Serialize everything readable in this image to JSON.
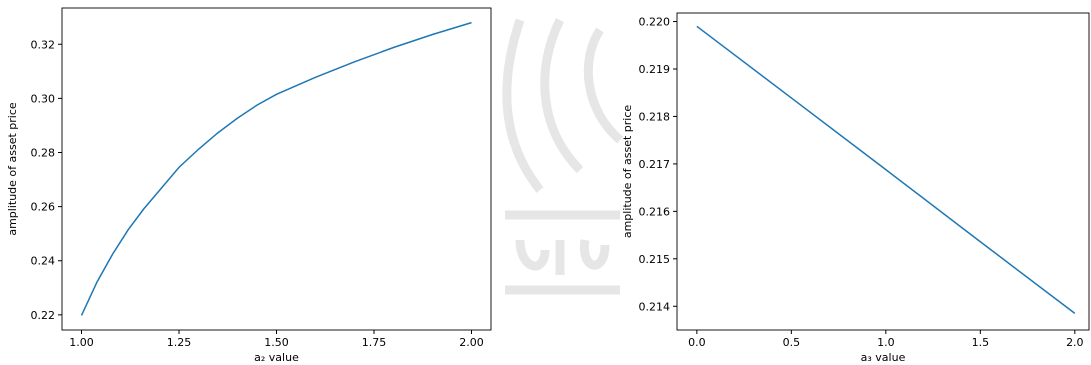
{
  "chart_data": [
    {
      "type": "line",
      "xlabel": "a₂ value",
      "ylabel": "amplitude of asset price",
      "x": [
        1.0,
        1.04,
        1.08,
        1.12,
        1.16,
        1.2,
        1.25,
        1.3,
        1.35,
        1.4,
        1.45,
        1.5,
        1.6,
        1.7,
        1.8,
        1.9,
        2.0
      ],
      "series": [
        {
          "color": "#1f77b4",
          "values": [
            0.2198,
            0.2322,
            0.2425,
            0.2515,
            0.2592,
            0.266,
            0.2745,
            0.2812,
            0.2873,
            0.2927,
            0.2975,
            0.3015,
            0.3078,
            0.3135,
            0.3188,
            0.3236,
            0.328
          ]
        }
      ],
      "xlim": [
        0.95,
        2.05
      ],
      "ylim": [
        0.2144,
        0.3334
      ],
      "xticks": [
        {
          "value": 1.0,
          "label": "1.00"
        },
        1.25,
        {
          "value": 1.5,
          "label": "1.50"
        },
        1.75,
        {
          "value": 2.0,
          "label": "2.00"
        }
      ],
      "yticks": [
        0.22,
        0.24,
        0.26,
        0.28,
        {
          "value": 0.3,
          "label": "0.30"
        },
        0.32
      ]
    },
    {
      "type": "line",
      "xlabel": "a₃ value",
      "ylabel": "amplitude of asset price",
      "x": [
        0,
        0.5,
        1.0,
        1.5,
        2.0
      ],
      "series": [
        {
          "color": "#1f77b4",
          "values": [
            0.2199,
            0.21839,
            0.21688,
            0.21536,
            0.21385
          ]
        }
      ],
      "xlim": [
        -0.105,
        2.075
      ],
      "ylim": [
        0.2135,
        0.22018
      ],
      "xticks": [
        {
          "value": 0,
          "label": "0.0"
        },
        0.5,
        {
          "value": 1.0,
          "label": "1.0"
        },
        1.5,
        {
          "value": 2.0,
          "label": "2.0"
        }
      ],
      "yticks": [
        0.214,
        0.215,
        0.216,
        0.217,
        0.218,
        0.219,
        {
          "value": 0.22,
          "label": "0.220"
        }
      ]
    }
  ]
}
